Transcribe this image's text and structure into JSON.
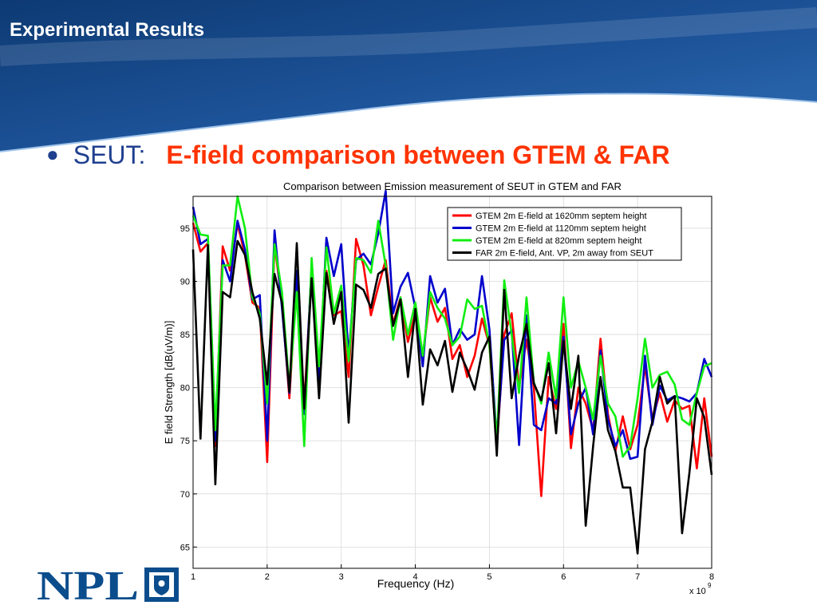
{
  "slide": {
    "title": "Experimental Results",
    "bullet_label": "SEUT:",
    "bullet_headline": "E-field comparison between GTEM & FAR",
    "logo_text": "NPL"
  },
  "colors": {
    "header_dark": "#0d3a73",
    "header_light": "#2f6eb4",
    "bullet_blue": "#1f3f8f",
    "headline_red": "#ff3300",
    "logo_blue": "#0b4d8c"
  },
  "chart_data": {
    "type": "line",
    "title": "Comparison between Emission measurement of SEUT in GTEM and FAR",
    "xlabel": "Frequency (Hz)",
    "ylabel": "E field Strength [dB(uV/m)]",
    "x_multiplier": "x 10",
    "x_exponent": "9",
    "xlim": [
      1,
      8
    ],
    "ylim": [
      63,
      98
    ],
    "xticks": [
      1,
      2,
      3,
      4,
      5,
      6,
      7,
      8
    ],
    "yticks": [
      65,
      70,
      75,
      80,
      85,
      90,
      95
    ],
    "grid": true,
    "legend_position": "top-right",
    "x": [
      1.0,
      1.1,
      1.2,
      1.3,
      1.4,
      1.5,
      1.6,
      1.7,
      1.8,
      1.9,
      2.0,
      2.1,
      2.2,
      2.3,
      2.4,
      2.5,
      2.6,
      2.7,
      2.8,
      2.9,
      3.0,
      3.1,
      3.2,
      3.3,
      3.4,
      3.5,
      3.6,
      3.7,
      3.8,
      3.9,
      4.0,
      4.1,
      4.2,
      4.3,
      4.4,
      4.5,
      4.6,
      4.7,
      4.8,
      4.9,
      5.0,
      5.1,
      5.2,
      5.3,
      5.4,
      5.5,
      5.6,
      5.7,
      5.8,
      5.9,
      6.0,
      6.1,
      6.2,
      6.3,
      6.4,
      6.5,
      6.6,
      6.7,
      6.8,
      6.9,
      7.0,
      7.1,
      7.2,
      7.3,
      7.4,
      7.5,
      7.6,
      7.7,
      7.8,
      7.9,
      8.0
    ],
    "series": [
      {
        "name": "GTEM 2m E-field at 1620mm septem height",
        "color": "#ff0000",
        "values": [
          95.5,
          92.8,
          93.6,
          74.5,
          93.3,
          91.0,
          95.4,
          92.5,
          88.0,
          87.5,
          73.0,
          93.5,
          88.0,
          79.0,
          90.5,
          78.5,
          91.0,
          81.0,
          91.0,
          86.8,
          87.2,
          81.0,
          94.0,
          91.5,
          86.8,
          89.5,
          92.0,
          86.0,
          88.5,
          84.3,
          87.0,
          83.0,
          88.5,
          86.2,
          87.5,
          82.7,
          84.0,
          81.0,
          83.0,
          86.5,
          84.0,
          74.5,
          85.0,
          87.0,
          80.0,
          84.5,
          80.0,
          69.8,
          81.0,
          78.0,
          86.0,
          74.3,
          80.0,
          78.5,
          76.0,
          84.6,
          77.5,
          74.0,
          77.3,
          74.2,
          76.5,
          82.0,
          77.0,
          79.5,
          76.8,
          78.8,
          78.0,
          78.3,
          72.4,
          79.0,
          73.5
        ]
      },
      {
        "name": "GTEM 2m E-field at 1120mm septem height",
        "color": "#0000cc",
        "values": [
          97.0,
          93.5,
          94.0,
          75.0,
          92.0,
          90.0,
          95.7,
          93.0,
          88.3,
          88.7,
          75.0,
          94.8,
          87.5,
          79.5,
          91.0,
          77.5,
          91.5,
          80.5,
          94.1,
          90.5,
          93.5,
          83.0,
          92.0,
          92.6,
          91.6,
          94.5,
          98.5,
          87.0,
          89.5,
          90.8,
          87.5,
          82.0,
          90.5,
          88.0,
          89.3,
          84.0,
          85.5,
          84.5,
          85.0,
          90.5,
          85.5,
          75.0,
          84.5,
          85.4,
          74.6,
          86.8,
          76.5,
          76.0,
          79.0,
          78.5,
          84.8,
          75.6,
          78.5,
          80.0,
          75.6,
          83.5,
          77.0,
          74.5,
          76.0,
          73.3,
          73.5,
          83.0,
          76.5,
          80.2,
          78.8,
          79.2,
          79.0,
          78.7,
          79.5,
          82.7,
          81.0
        ]
      },
      {
        "name": "GTEM 2m E-field at 820mm septem height",
        "color": "#11ee11",
        "values": [
          96.2,
          94.4,
          94.3,
          76.0,
          91.5,
          91.5,
          98.0,
          95.0,
          88.5,
          87.0,
          78.5,
          93.5,
          89.0,
          80.0,
          89.0,
          74.5,
          92.2,
          82.0,
          93.2,
          87.0,
          89.6,
          82.5,
          92.2,
          92.0,
          90.8,
          95.7,
          91.5,
          84.5,
          88.5,
          85.0,
          88.0,
          83.0,
          89.0,
          87.5,
          86.5,
          84.0,
          84.8,
          88.3,
          87.4,
          87.7,
          84.0,
          75.0,
          90.1,
          85.0,
          79.5,
          88.5,
          80.5,
          78.5,
          83.3,
          79.0,
          88.5,
          80.0,
          82.5,
          80.0,
          77.0,
          83.0,
          78.5,
          77.3,
          73.5,
          74.5,
          79.0,
          84.6,
          80.0,
          81.2,
          81.5,
          80.3,
          77.0,
          76.5,
          79.5,
          82.0,
          82.3
        ]
      },
      {
        "name": "FAR 2m E-field, Ant. VP, 2m away from SEUT",
        "color": "#000000",
        "values": [
          93.0,
          75.2,
          93.4,
          70.9,
          89.0,
          88.5,
          93.8,
          92.5,
          89.0,
          86.5,
          80.3,
          90.7,
          88.0,
          79.6,
          93.6,
          78.0,
          90.3,
          79.0,
          90.8,
          86.0,
          89.0,
          76.7,
          89.7,
          89.2,
          87.5,
          90.7,
          91.2,
          85.8,
          88.3,
          81.0,
          87.4,
          78.4,
          83.6,
          82.1,
          84.4,
          79.6,
          83.3,
          81.7,
          79.8,
          83.3,
          84.8,
          73.6,
          89.2,
          79.0,
          83.0,
          86.0,
          80.4,
          78.8,
          82.3,
          75.7,
          84.4,
          78.0,
          83.0,
          67.0,
          74.5,
          81.0,
          76.0,
          74.0,
          70.6,
          70.6,
          64.4,
          74.2,
          76.8,
          81.0,
          78.5,
          79.2,
          66.3,
          72.0,
          79.0,
          77.2,
          71.8
        ]
      }
    ]
  }
}
